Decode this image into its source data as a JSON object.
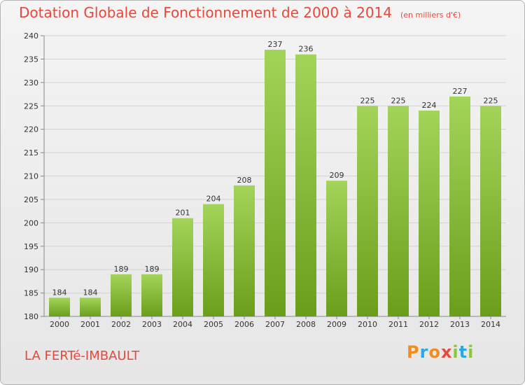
{
  "header": {
    "title": "Dotation Globale de Fonctionnement de 2000 à 2014",
    "unit": "(en milliers d'€)"
  },
  "commune": "LA FERTé-IMBAULT",
  "logo": {
    "letters": [
      "P",
      "r",
      "o",
      "x",
      "i",
      "t",
      "i"
    ],
    "colors": [
      "#f28c1e",
      "#2aa8e0",
      "#f28c1e",
      "#e8473a",
      "#8cc63f",
      "#2aa8e0",
      "#8cc63f"
    ]
  },
  "colors": {
    "bar_light": "#a3d45a",
    "bar_dark": "#6a9e1a",
    "title": "#e8473a"
  },
  "chart_data": {
    "type": "bar",
    "categories": [
      "2000",
      "2001",
      "2002",
      "2003",
      "2004",
      "2005",
      "2006",
      "2007",
      "2008",
      "2009",
      "2010",
      "2011",
      "2012",
      "2013",
      "2014"
    ],
    "values": [
      184,
      184,
      189,
      189,
      201,
      204,
      208,
      237,
      236,
      209,
      225,
      225,
      224,
      227,
      225
    ],
    "ylim": [
      180,
      240
    ],
    "yticks": [
      180,
      185,
      190,
      195,
      200,
      205,
      210,
      215,
      220,
      225,
      230,
      235,
      240
    ],
    "grid": true,
    "data_labels": true
  }
}
